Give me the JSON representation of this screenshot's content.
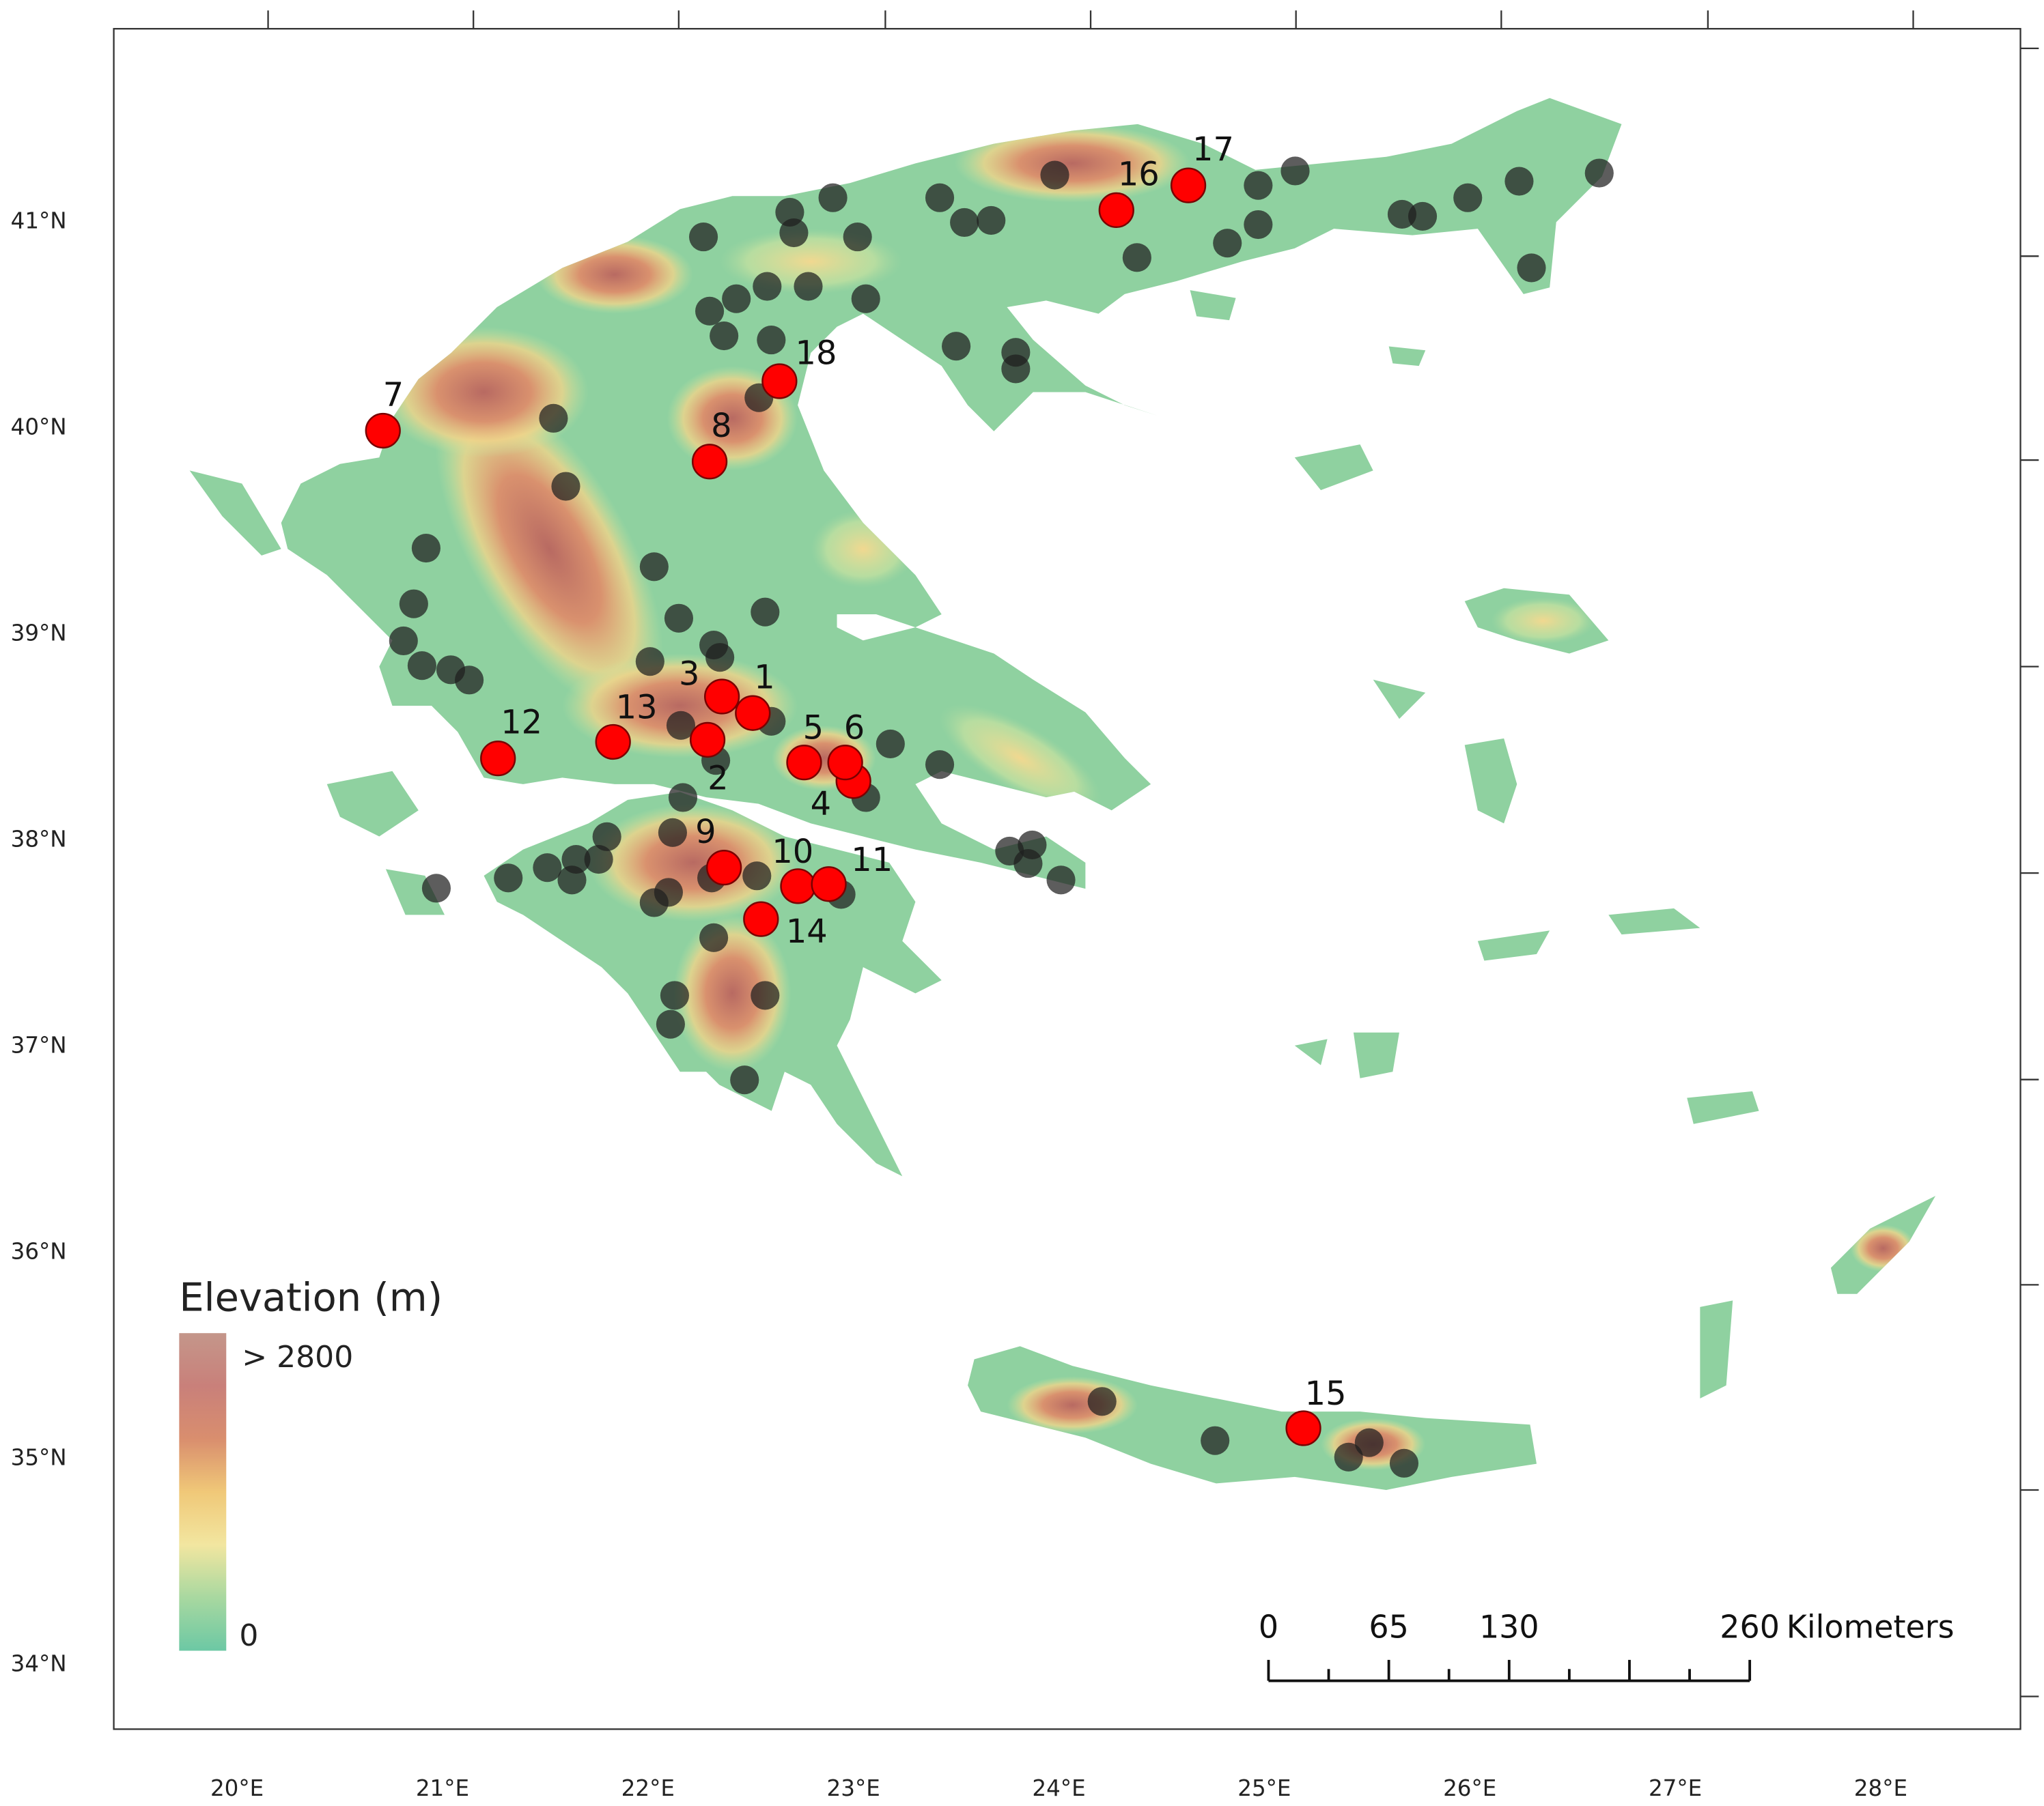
{
  "map": {
    "xlim": [
      19.4,
      28.68
    ],
    "ylim": [
      33.68,
      41.93
    ],
    "lon_ticks": [
      {
        "value": 20,
        "label": "20°E"
      },
      {
        "value": 21,
        "label": "21°E"
      },
      {
        "value": 22,
        "label": "22°E"
      },
      {
        "value": 23,
        "label": "23°E"
      },
      {
        "value": 24,
        "label": "24°E"
      },
      {
        "value": 25,
        "label": "25°E"
      },
      {
        "value": 26,
        "label": "26°E"
      },
      {
        "value": 27,
        "label": "27°E"
      },
      {
        "value": 28,
        "label": "28°E"
      }
    ],
    "lat_ticks": [
      {
        "value": 34,
        "label": "34°N"
      },
      {
        "value": 35,
        "label": "35°N"
      },
      {
        "value": 36,
        "label": "36°N"
      },
      {
        "value": 37,
        "label": "37°N"
      },
      {
        "value": 38,
        "label": "38°N"
      },
      {
        "value": 39,
        "label": "39°N"
      },
      {
        "value": 40,
        "label": "40°N"
      },
      {
        "value": 41,
        "label": "41°N"
      }
    ],
    "legend": {
      "title": "Elevation (m)",
      "high_label": "> 2800",
      "low_label": "0",
      "colors": [
        "#c4968a",
        "#c9807a",
        "#d98e6e",
        "#f0c878",
        "#f2e6a0",
        "#a8d8a0",
        "#6cc8a4"
      ]
    },
    "scale_bar": {
      "labels": [
        0,
        65,
        130,
        260
      ],
      "unit": "Kilometers"
    },
    "site_color": "#ff0000",
    "station_color": "#1f1f1f",
    "sites": [
      {
        "label": "1",
        "lon": 22.51,
        "lat": 38.61
      },
      {
        "label": "2",
        "lon": 22.29,
        "lat": 38.48
      },
      {
        "label": "3",
        "lon": 22.36,
        "lat": 38.69
      },
      {
        "label": "4",
        "lon": 23.0,
        "lat": 38.28
      },
      {
        "label": "5",
        "lon": 22.76,
        "lat": 38.37
      },
      {
        "label": "6",
        "lon": 22.96,
        "lat": 38.37
      },
      {
        "label": "7",
        "lon": 20.71,
        "lat": 39.98
      },
      {
        "label": "8",
        "lon": 22.3,
        "lat": 39.83
      },
      {
        "label": "9",
        "lon": 22.37,
        "lat": 37.86
      },
      {
        "label": "10",
        "lon": 22.73,
        "lat": 37.77
      },
      {
        "label": "11",
        "lon": 22.88,
        "lat": 37.78
      },
      {
        "label": "12",
        "lon": 21.27,
        "lat": 38.39
      },
      {
        "label": "13",
        "lon": 21.83,
        "lat": 38.47
      },
      {
        "label": "14",
        "lon": 22.55,
        "lat": 37.61
      },
      {
        "label": "15",
        "lon": 25.19,
        "lat": 35.14
      },
      {
        "label": "16",
        "lon": 24.28,
        "lat": 41.05
      },
      {
        "label": "17",
        "lon": 24.63,
        "lat": 41.17
      },
      {
        "label": "18",
        "lon": 22.64,
        "lat": 40.22
      }
    ],
    "stations": [
      {
        "lon": 22.69,
        "lat": 41.04
      },
      {
        "lon": 22.9,
        "lat": 41.11
      },
      {
        "lon": 22.71,
        "lat": 40.94
      },
      {
        "lon": 22.27,
        "lat": 40.92
      },
      {
        "lon": 23.02,
        "lat": 40.92
      },
      {
        "lon": 23.42,
        "lat": 41.11
      },
      {
        "lon": 23.54,
        "lat": 40.99
      },
      {
        "lon": 23.67,
        "lat": 41.0
      },
      {
        "lon": 23.98,
        "lat": 41.22
      },
      {
        "lon": 24.38,
        "lat": 40.82
      },
      {
        "lon": 24.82,
        "lat": 40.89
      },
      {
        "lon": 24.97,
        "lat": 41.17
      },
      {
        "lon": 24.97,
        "lat": 40.98
      },
      {
        "lon": 25.15,
        "lat": 41.24
      },
      {
        "lon": 25.67,
        "lat": 41.03
      },
      {
        "lon": 25.77,
        "lat": 41.02
      },
      {
        "lon": 25.99,
        "lat": 41.11
      },
      {
        "lon": 26.24,
        "lat": 41.19
      },
      {
        "lon": 26.63,
        "lat": 41.23
      },
      {
        "lon": 26.3,
        "lat": 40.77
      },
      {
        "lon": 22.3,
        "lat": 40.56
      },
      {
        "lon": 22.43,
        "lat": 40.62
      },
      {
        "lon": 22.58,
        "lat": 40.68
      },
      {
        "lon": 22.78,
        "lat": 40.68
      },
      {
        "lon": 23.06,
        "lat": 40.62
      },
      {
        "lon": 22.37,
        "lat": 40.44
      },
      {
        "lon": 22.6,
        "lat": 40.42
      },
      {
        "lon": 23.5,
        "lat": 40.39
      },
      {
        "lon": 23.79,
        "lat": 40.36
      },
      {
        "lon": 23.79,
        "lat": 40.28
      },
      {
        "lon": 22.54,
        "lat": 40.14
      },
      {
        "lon": 21.54,
        "lat": 40.04
      },
      {
        "lon": 21.6,
        "lat": 39.71
      },
      {
        "lon": 20.92,
        "lat": 39.41
      },
      {
        "lon": 22.03,
        "lat": 39.32
      },
      {
        "lon": 20.86,
        "lat": 39.14
      },
      {
        "lon": 20.81,
        "lat": 38.96
      },
      {
        "lon": 20.9,
        "lat": 38.84
      },
      {
        "lon": 21.04,
        "lat": 38.82
      },
      {
        "lon": 21.13,
        "lat": 38.77
      },
      {
        "lon": 22.15,
        "lat": 39.07
      },
      {
        "lon": 22.57,
        "lat": 39.1
      },
      {
        "lon": 22.32,
        "lat": 38.94
      },
      {
        "lon": 22.01,
        "lat": 38.86
      },
      {
        "lon": 22.35,
        "lat": 38.88
      },
      {
        "lon": 22.16,
        "lat": 38.55
      },
      {
        "lon": 22.6,
        "lat": 38.57
      },
      {
        "lon": 22.33,
        "lat": 38.38
      },
      {
        "lon": 23.18,
        "lat": 38.46
      },
      {
        "lon": 23.42,
        "lat": 38.36
      },
      {
        "lon": 23.06,
        "lat": 38.2
      },
      {
        "lon": 22.17,
        "lat": 38.2
      },
      {
        "lon": 21.8,
        "lat": 38.01
      },
      {
        "lon": 22.12,
        "lat": 38.03
      },
      {
        "lon": 21.65,
        "lat": 37.9
      },
      {
        "lon": 21.76,
        "lat": 37.9
      },
      {
        "lon": 21.51,
        "lat": 37.86
      },
      {
        "lon": 21.63,
        "lat": 37.8
      },
      {
        "lon": 21.32,
        "lat": 37.81
      },
      {
        "lon": 20.97,
        "lat": 37.76
      },
      {
        "lon": 22.53,
        "lat": 37.82
      },
      {
        "lon": 22.31,
        "lat": 37.81
      },
      {
        "lon": 22.03,
        "lat": 37.69
      },
      {
        "lon": 22.1,
        "lat": 37.74
      },
      {
        "lon": 22.94,
        "lat": 37.73
      },
      {
        "lon": 22.32,
        "lat": 37.52
      },
      {
        "lon": 22.13,
        "lat": 37.24
      },
      {
        "lon": 22.11,
        "lat": 37.1
      },
      {
        "lon": 22.57,
        "lat": 37.24
      },
      {
        "lon": 22.47,
        "lat": 36.83
      },
      {
        "lon": 23.76,
        "lat": 37.94
      },
      {
        "lon": 23.87,
        "lat": 37.97
      },
      {
        "lon": 23.85,
        "lat": 37.88
      },
      {
        "lon": 24.01,
        "lat": 37.8
      },
      {
        "lon": 24.21,
        "lat": 35.27
      },
      {
        "lon": 24.76,
        "lat": 35.08
      },
      {
        "lon": 25.41,
        "lat": 35.0
      },
      {
        "lon": 25.51,
        "lat": 35.07
      },
      {
        "lon": 25.68,
        "lat": 34.97
      }
    ]
  }
}
